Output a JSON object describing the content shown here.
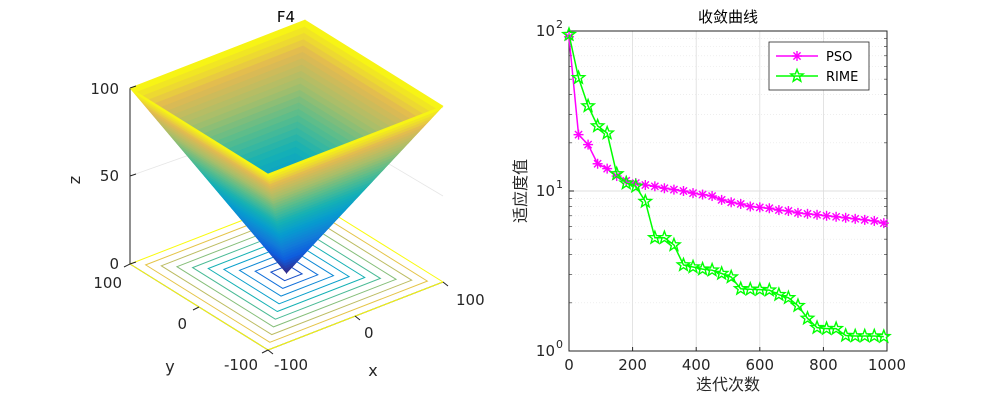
{
  "chart_data": [
    {
      "type": "surface3d",
      "title": "F4",
      "function": "max(|x|,|y|)",
      "xlabel": "x",
      "ylabel": "y",
      "zlabel": "z",
      "x_ticks": [
        "-100",
        "0",
        "100"
      ],
      "y_ticks": [
        "-100",
        "0",
        "100"
      ],
      "z_ticks": [
        "0",
        "50",
        "100"
      ],
      "xlim": [
        -100,
        100
      ],
      "ylim": [
        -100,
        100
      ],
      "zlim": [
        0,
        100
      ],
      "contour_levels": [
        10,
        20,
        30,
        40,
        50,
        60,
        70,
        80,
        90,
        100
      ],
      "colormap": "parula"
    },
    {
      "type": "line",
      "title": "收敛曲线",
      "xlabel": "迭代次数",
      "ylabel": "适应度值",
      "yscale": "log",
      "xlim": [
        0,
        1000
      ],
      "ylim": [
        1,
        100
      ],
      "x_ticks": [
        "0",
        "200",
        "400",
        "600",
        "800",
        "1000"
      ],
      "y_ticks": [
        {
          "base": "10",
          "exp": "0"
        },
        {
          "base": "10",
          "exp": "1"
        },
        {
          "base": "10",
          "exp": "2"
        }
      ],
      "legend_position": "top-right",
      "series": [
        {
          "name": "PSO",
          "color": "#ff00ff",
          "marker": "asterisk",
          "x": [
            0,
            30,
            60,
            90,
            120,
            150,
            180,
            210,
            240,
            270,
            300,
            330,
            360,
            390,
            420,
            450,
            480,
            510,
            540,
            570,
            600,
            630,
            660,
            690,
            720,
            750,
            780,
            810,
            840,
            870,
            900,
            930,
            960,
            990
          ],
          "values": [
            92,
            22.5,
            19.5,
            14.8,
            13.8,
            12.4,
            11.6,
            11.2,
            10.9,
            10.7,
            10.4,
            10.2,
            10.0,
            9.7,
            9.5,
            9.3,
            8.8,
            8.5,
            8.3,
            8.0,
            7.9,
            7.8,
            7.6,
            7.5,
            7.3,
            7.2,
            7.1,
            7.0,
            6.9,
            6.8,
            6.7,
            6.6,
            6.5,
            6.3
          ]
        },
        {
          "name": "RIME",
          "color": "#00ff00",
          "marker": "pentagram",
          "x": [
            0,
            30,
            60,
            90,
            120,
            150,
            180,
            210,
            240,
            270,
            300,
            330,
            360,
            390,
            420,
            450,
            480,
            510,
            540,
            570,
            600,
            630,
            660,
            690,
            720,
            750,
            780,
            810,
            840,
            870,
            900,
            930,
            960,
            990
          ],
          "values": [
            95,
            51,
            34,
            25.5,
            23,
            12.8,
            11.2,
            10.7,
            8.6,
            5.1,
            5.1,
            4.6,
            3.45,
            3.35,
            3.25,
            3.2,
            3.05,
            2.9,
            2.45,
            2.43,
            2.42,
            2.4,
            2.25,
            2.15,
            1.92,
            1.6,
            1.4,
            1.38,
            1.38,
            1.25,
            1.24,
            1.24,
            1.24,
            1.23
          ]
        }
      ]
    }
  ]
}
